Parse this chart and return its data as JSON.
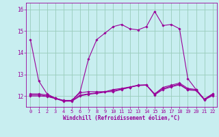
{
  "xlabel": "Windchill (Refroidissement éolien,°C)",
  "background_color": "#c8eef0",
  "grid_color": "#99ccbb",
  "line_color": "#990099",
  "x_ticks": [
    0,
    1,
    2,
    3,
    4,
    5,
    6,
    7,
    8,
    9,
    10,
    11,
    12,
    13,
    14,
    15,
    16,
    17,
    18,
    19,
    20,
    21,
    22
  ],
  "ylim": [
    11.5,
    16.3
  ],
  "xlim": [
    -0.5,
    22.5
  ],
  "yticks": [
    12,
    13,
    14,
    15,
    16
  ],
  "series": [
    [
      14.6,
      12.7,
      12.1,
      11.9,
      11.8,
      11.8,
      12.2,
      13.7,
      14.6,
      14.9,
      15.2,
      15.3,
      15.1,
      15.05,
      15.2,
      15.9,
      15.25,
      15.3,
      15.1,
      12.8,
      12.3,
      11.85,
      12.1
    ],
    [
      12.1,
      12.1,
      12.05,
      11.9,
      11.78,
      11.8,
      12.15,
      12.2,
      12.2,
      12.2,
      12.2,
      12.3,
      12.4,
      12.5,
      12.5,
      12.1,
      12.4,
      12.5,
      12.6,
      12.35,
      12.3,
      11.85,
      12.1
    ],
    [
      12.05,
      12.05,
      12.0,
      11.9,
      11.78,
      11.78,
      12.05,
      12.1,
      12.15,
      12.2,
      12.3,
      12.35,
      12.42,
      12.5,
      12.52,
      12.08,
      12.35,
      12.45,
      12.55,
      12.3,
      12.28,
      11.85,
      12.05
    ],
    [
      12.0,
      12.0,
      11.98,
      11.88,
      11.76,
      11.76,
      12.0,
      12.08,
      12.12,
      12.18,
      12.25,
      12.32,
      12.4,
      12.48,
      12.5,
      12.05,
      12.3,
      12.42,
      12.52,
      12.28,
      12.25,
      11.82,
      12.02
    ]
  ]
}
